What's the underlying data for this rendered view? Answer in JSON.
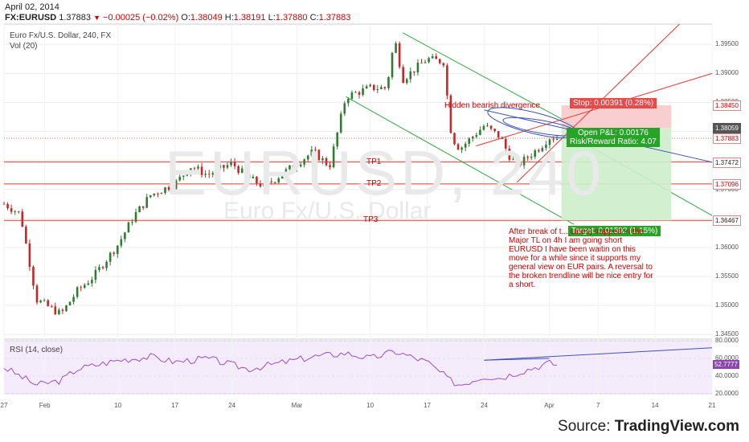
{
  "header": {
    "date": "April 02, 2014",
    "symbol": "FX:EURUSD",
    "last": "1.37883",
    "change": "−0.00025 (−0.02%)",
    "open_label": "O:",
    "open": "1.38049",
    "high_label": "H:",
    "high": "1.38191",
    "low_label": "L:",
    "low": "1.37880",
    "close_label": "C:",
    "close": "1.37883"
  },
  "pane_title": "Euro Fx/U.S. Dollar, 240, FX",
  "vol_label": "Vol (20)",
  "watermark": {
    "symbol": "EURUSD, 240",
    "name": "Euro Fx/U.S. Dollar"
  },
  "annotations": {
    "divergence": "Hidden bearish divergence",
    "tp1": "TP1",
    "tp2": "TP2",
    "tp3": "TP3",
    "note": "After break of t... Lines) trapped in the Major TL on 4h I am going short EURUSD I have been waitin on this move for a while since it supports my general view on EUR pairs. A reversal to the broken trendline will be nice entry for a short."
  },
  "position": {
    "stop": "Stop: 0.00391 (0.28%)",
    "pnl": "Open P&L: 0.00176",
    "rr": "Risk/Reward Ratio: 4.07",
    "target": "Target: 0.01592 (1.15%)"
  },
  "price_axis": {
    "ticks": [
      "1.39500",
      "1.39000",
      "1.38500",
      "1.38000",
      "1.37500",
      "1.37000",
      "1.36500",
      "1.36000",
      "1.35500",
      "1.35000",
      "1.34500"
    ],
    "tags": [
      {
        "text": "1.38450",
        "bg": "#ffffff",
        "fg": "#d00000"
      },
      {
        "text": "1.38059",
        "bg": "#555555",
        "fg": "#ffffff"
      },
      {
        "text": "1.37883",
        "bg": "#ffffff",
        "fg": "#d00000"
      },
      {
        "text": "1.37472",
        "bg": "#ffffff",
        "fg": "#222222"
      },
      {
        "text": "1.37096",
        "bg": "#ffffff",
        "fg": "#d00000"
      },
      {
        "text": "1.36467",
        "bg": "#ffffff",
        "fg": "#222222"
      }
    ]
  },
  "rsi_axis": {
    "ticks": [
      "80.0000",
      "60.0000",
      "40.0000",
      "20.0000"
    ],
    "tag": "52.7777"
  },
  "rsi_label": "RSI (14, close)",
  "time_axis": [
    "27",
    "Feb",
    "10",
    "17",
    "24",
    "Mar",
    "10",
    "17",
    "24",
    "Apr",
    "7",
    "14",
    "21"
  ],
  "source": {
    "prefix": "Source: ",
    "brand": "TradingView.com"
  },
  "colors": {
    "up": "#2e7d32",
    "down": "#c62828",
    "channel": "#33aa44",
    "level": "#e53935",
    "rsi": "#9c4dcc",
    "trend": "#3f51b5"
  },
  "chart_data": {
    "type": "candlestick",
    "symbol": "FX:EURUSD",
    "timeframe": "240",
    "x_range": [
      "Jan 27",
      "Apr 21"
    ],
    "ylim": [
      1.3442,
      1.3985
    ],
    "close_path": [
      [
        "Jan 27",
        1.3675
      ],
      [
        "Jan 29",
        1.3658
      ],
      [
        "Jan 31",
        1.351
      ],
      [
        "Feb 3",
        1.3485
      ],
      [
        "Feb 5",
        1.3525
      ],
      [
        "Feb 7",
        1.355
      ],
      [
        "Feb 10",
        1.3605
      ],
      [
        "Feb 12",
        1.3655
      ],
      [
        "Feb 14",
        1.369
      ],
      [
        "Feb 17",
        1.371
      ],
      [
        "Feb 19",
        1.374
      ],
      [
        "Feb 21",
        1.3725
      ],
      [
        "Feb 24",
        1.3745
      ],
      [
        "Feb 26",
        1.372
      ],
      [
        "Feb 28",
        1.3705
      ],
      [
        "Mar 3",
        1.3765
      ],
      [
        "Mar 5",
        1.374
      ],
      [
        "Mar 7",
        1.386
      ],
      [
        "Mar 10",
        1.3875
      ],
      [
        "Mar 12",
        1.3875
      ],
      [
        "Mar 13",
        1.396
      ],
      [
        "Mar 14",
        1.389
      ],
      [
        "Mar 17",
        1.3925
      ],
      [
        "Mar 19",
        1.392
      ],
      [
        "Mar 20",
        1.379
      ],
      [
        "Mar 21",
        1.377
      ],
      [
        "Mar 24",
        1.381
      ],
      [
        "Mar 26",
        1.379
      ],
      [
        "Mar 27",
        1.376
      ],
      [
        "Mar 28",
        1.374
      ],
      [
        "Mar 31",
        1.3775
      ],
      [
        "Apr 1",
        1.379
      ],
      [
        "Apr 2",
        1.37883
      ]
    ],
    "horizontal_levels": [
      {
        "name": "TP1",
        "price": 1.37472
      },
      {
        "name": "TP2",
        "price": 1.37096
      },
      {
        "name": "TP3",
        "price": 1.36467
      },
      {
        "name": "stop",
        "price": 1.3845
      },
      {
        "name": "entry",
        "price": 1.38059
      }
    ],
    "rsi": {
      "label": "RSI (14, close)",
      "ylim": [
        20,
        80
      ],
      "last": 52.7777,
      "path": [
        [
          "Jan 27",
          50
        ],
        [
          "Jan 29",
          40
        ],
        [
          "Jan 31",
          30
        ],
        [
          "Feb 3",
          35
        ],
        [
          "Feb 5",
          48
        ],
        [
          "Feb 10",
          58
        ],
        [
          "Feb 14",
          62
        ],
        [
          "Feb 17",
          56
        ],
        [
          "Feb 21",
          60
        ],
        [
          "Feb 26",
          48
        ],
        [
          "Mar 3",
          62
        ],
        [
          "Mar 7",
          66
        ],
        [
          "Mar 10",
          60
        ],
        [
          "Mar 13",
          68
        ],
        [
          "Mar 17",
          56
        ],
        [
          "Mar 20",
          34
        ],
        [
          "Mar 21",
          30
        ],
        [
          "Mar 24",
          40
        ],
        [
          "Mar 26",
          38
        ],
        [
          "Mar 28",
          44
        ],
        [
          "Mar 31",
          52
        ],
        [
          "Apr 1",
          55
        ],
        [
          "Apr 2",
          52.7777
        ]
      ]
    }
  }
}
